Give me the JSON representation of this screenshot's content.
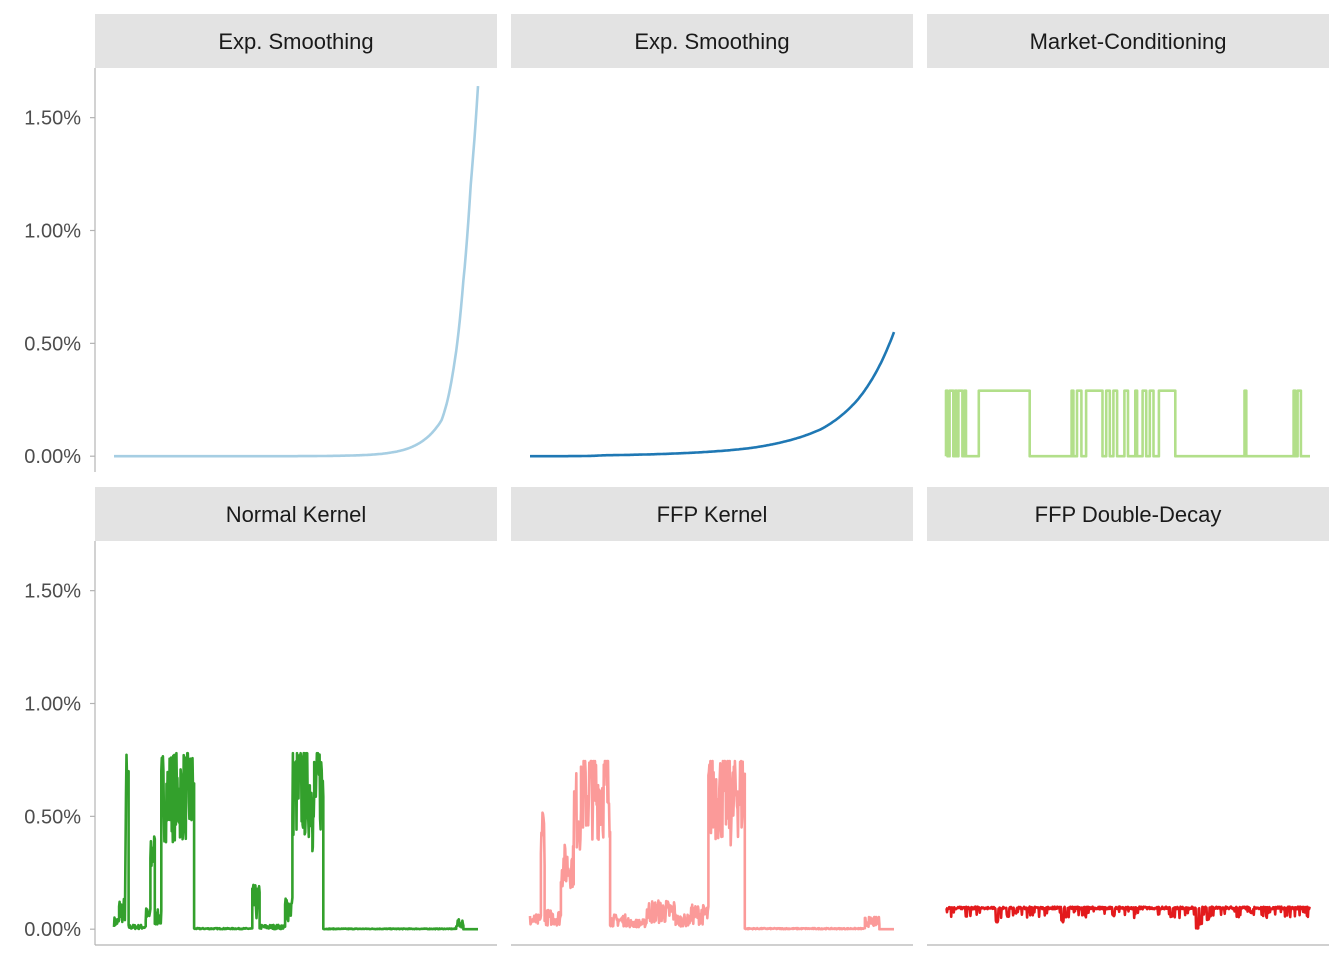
{
  "chart_data": {
    "type": "line",
    "layout": "facet-grid",
    "y_axis": {
      "ticks": [
        0.0,
        0.5,
        1.0,
        1.5
      ],
      "tick_labels": [
        "0.00%",
        "0.50%",
        "1.00%",
        "1.50%"
      ],
      "ylim": [
        -0.07,
        1.72
      ],
      "unit": "%"
    },
    "x_axis": {
      "range": [
        0,
        1
      ],
      "ticks_shown": false
    },
    "panels": [
      {
        "title": "Exp. Smoothing",
        "color": "#a6cee3",
        "style": "exponential",
        "series": [
          [
            0,
            0
          ],
          [
            0.5,
            0.0002
          ],
          [
            0.6,
            0.0015
          ],
          [
            0.7,
            0.006
          ],
          [
            0.8,
            0.03
          ],
          [
            0.85,
            0.07
          ],
          [
            0.9,
            0.16
          ],
          [
            0.93,
            0.36
          ],
          [
            0.96,
            0.78
          ],
          [
            0.98,
            1.2
          ],
          [
            1,
            1.64
          ]
        ]
      },
      {
        "title": "Exp. Smoothing",
        "color": "#1f78b4",
        "style": "exponential",
        "series": [
          [
            0,
            0.0
          ],
          [
            0.2,
            0.004
          ],
          [
            0.4,
            0.012
          ],
          [
            0.6,
            0.035
          ],
          [
            0.7,
            0.065
          ],
          [
            0.8,
            0.12
          ],
          [
            0.9,
            0.25
          ],
          [
            0.95,
            0.37
          ],
          [
            1,
            0.55
          ]
        ]
      },
      {
        "title": "Market-Conditioning",
        "color": "#b2df8a",
        "style": "regime",
        "high": 0.29,
        "low": 0.0,
        "high_intervals": [
          [
            0.0,
            0.004
          ],
          [
            0.01,
            0.02
          ],
          [
            0.025,
            0.03
          ],
          [
            0.034,
            0.045
          ],
          [
            0.05,
            0.055
          ],
          [
            0.09,
            0.23
          ],
          [
            0.345,
            0.35
          ],
          [
            0.36,
            0.372
          ],
          [
            0.385,
            0.43
          ],
          [
            0.44,
            0.45
          ],
          [
            0.46,
            0.47
          ],
          [
            0.49,
            0.5
          ],
          [
            0.52,
            0.525
          ],
          [
            0.54,
            0.55
          ],
          [
            0.56,
            0.57
          ],
          [
            0.585,
            0.63
          ],
          [
            0.82,
            0.825
          ],
          [
            0.955,
            0.96
          ],
          [
            0.966,
            0.975
          ]
        ]
      },
      {
        "title": "Normal Kernel",
        "color": "#33a02c",
        "style": "spiky",
        "cap": 0.78,
        "segments": [
          [
            0,
            0.014,
            0.05
          ],
          [
            0.014,
            0.03,
            0.13
          ],
          [
            0.033,
            0.04,
            0.7
          ],
          [
            0.04,
            0.087,
            0.02
          ],
          [
            0.087,
            0.1,
            0.09
          ],
          [
            0.1,
            0.112,
            0.4
          ],
          [
            0.112,
            0.13,
            0.08
          ],
          [
            0.13,
            0.22,
            0.7
          ],
          [
            0.22,
            0.38,
            0.005
          ],
          [
            0.38,
            0.4,
            0.18
          ],
          [
            0.4,
            0.47,
            0.02
          ],
          [
            0.47,
            0.49,
            0.15
          ],
          [
            0.49,
            0.545,
            0.72
          ],
          [
            0.545,
            0.55,
            0.6
          ],
          [
            0.55,
            0.575,
            0.75
          ],
          [
            0.575,
            0.94,
            0.003
          ],
          [
            0.94,
            0.96,
            0.04
          ],
          [
            0.96,
            1,
            0.0
          ]
        ]
      },
      {
        "title": "FFP Kernel",
        "color": "#fb9a99",
        "style": "spiky",
        "cap": 0.745,
        "segments": [
          [
            0,
            0.03,
            0.06
          ],
          [
            0.03,
            0.04,
            0.51
          ],
          [
            0.04,
            0.085,
            0.08
          ],
          [
            0.085,
            0.12,
            0.33
          ],
          [
            0.12,
            0.14,
            0.62
          ],
          [
            0.14,
            0.22,
            0.72
          ],
          [
            0.22,
            0.27,
            0.06
          ],
          [
            0.27,
            0.32,
            0.04
          ],
          [
            0.32,
            0.4,
            0.12
          ],
          [
            0.4,
            0.44,
            0.06
          ],
          [
            0.44,
            0.49,
            0.1
          ],
          [
            0.49,
            0.55,
            0.7
          ],
          [
            0.55,
            0.56,
            0.65
          ],
          [
            0.56,
            0.59,
            0.72
          ],
          [
            0.59,
            0.92,
            0.005
          ],
          [
            0.92,
            0.96,
            0.05
          ],
          [
            0.96,
            1,
            0.0
          ]
        ]
      },
      {
        "title": "FFP Double-Decay",
        "color": "#e31a1c",
        "style": "band",
        "base": 0.1,
        "dips": [
          [
            0.14,
            0.03
          ],
          [
            0.17,
            0.055
          ],
          [
            0.19,
            0.07
          ],
          [
            0.32,
            0.03
          ],
          [
            0.33,
            0.05
          ],
          [
            0.46,
            0.06
          ],
          [
            0.62,
            0.05
          ],
          [
            0.69,
            0.0
          ],
          [
            0.7,
            0.02
          ],
          [
            0.72,
            0.04
          ],
          [
            0.84,
            0.07
          ]
        ]
      }
    ]
  }
}
